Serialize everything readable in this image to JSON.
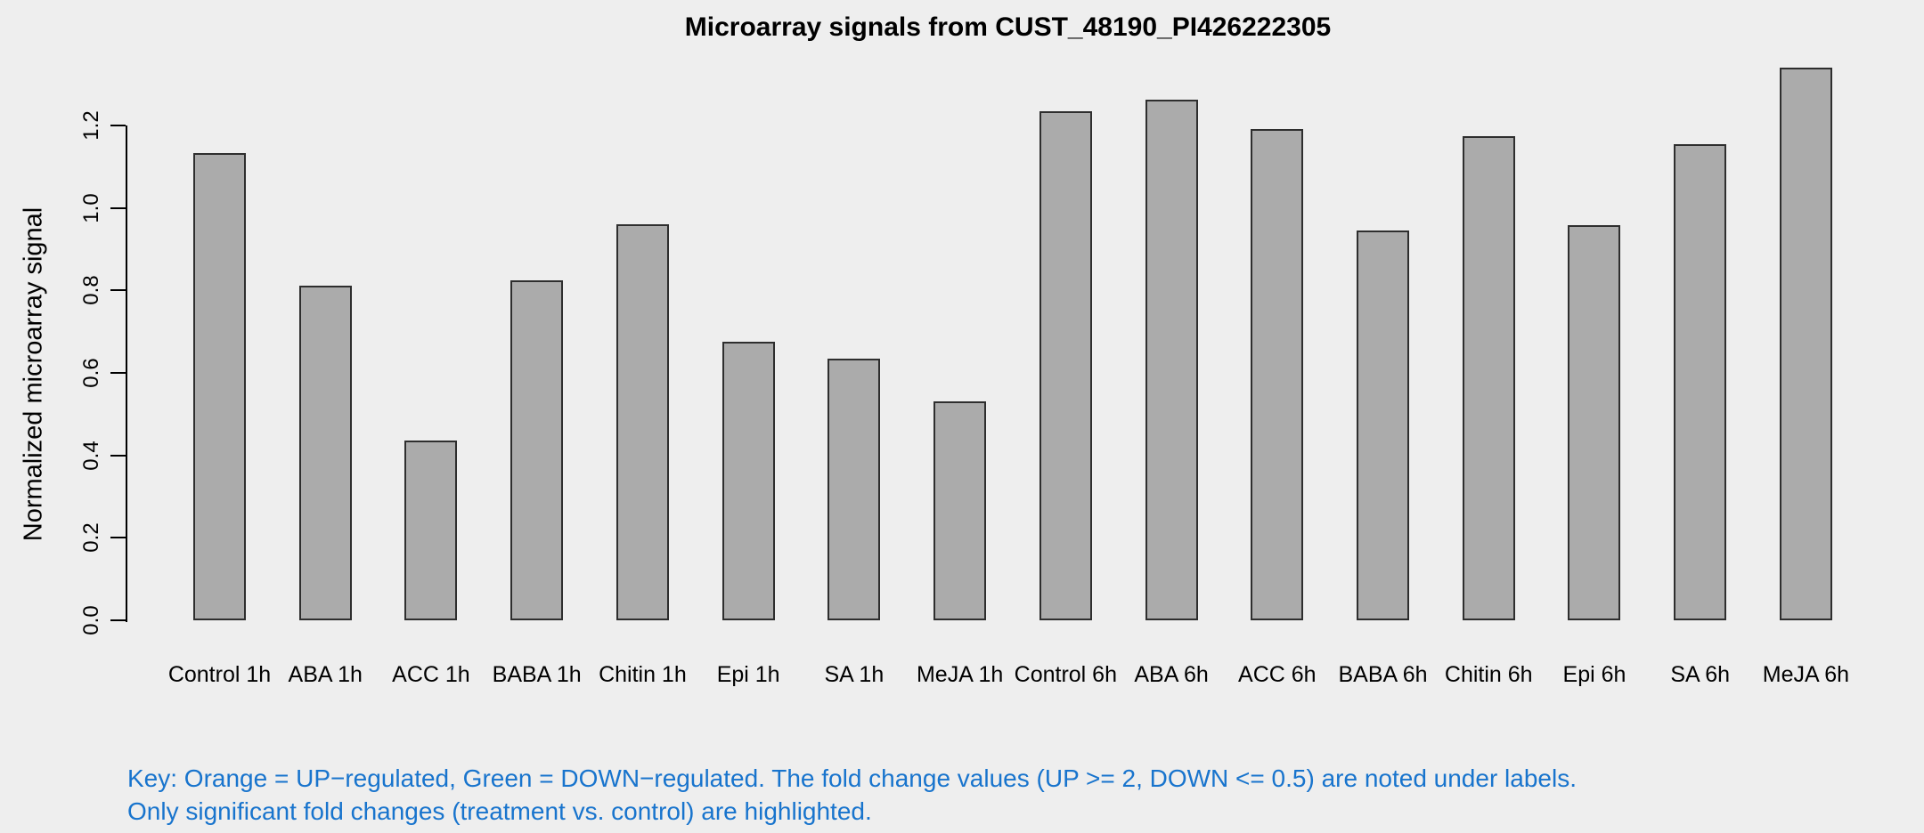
{
  "chart_data": {
    "type": "bar",
    "title": "Microarray signals from CUST_48190_PI426222305",
    "ylabel": "Normalized microarray signal",
    "xlabel": "",
    "categories": [
      "Control 1h",
      "ABA 1h",
      "ACC 1h",
      "BABA 1h",
      "Chitin 1h",
      "Epi 1h",
      "SA 1h",
      "MeJA 1h",
      "Control 6h",
      "ABA 6h",
      "ACC 6h",
      "BABA 6h",
      "Chitin 6h",
      "Epi 6h",
      "SA 6h",
      "MeJA 6h"
    ],
    "values": [
      1.133,
      0.812,
      0.435,
      0.825,
      0.96,
      0.675,
      0.635,
      0.53,
      1.234,
      1.262,
      1.19,
      0.946,
      1.174,
      0.959,
      1.155,
      1.339
    ],
    "ytick_labels": [
      "0.0",
      "0.2",
      "0.4",
      "0.6",
      "0.8",
      "1.0",
      "1.2"
    ],
    "ylim": [
      0,
      1.2
    ],
    "grid": "off",
    "legend_position": "none",
    "bar_fill": "#ABABAB",
    "bar_border": "#2e2e2e",
    "background": "#EEEEEE",
    "axis_color": "#000000"
  },
  "footnote": {
    "line1": "Key: Orange = UP−regulated, Green = DOWN−regulated. The fold change values (UP >= 2, DOWN <= 0.5) are noted under labels.",
    "line2": "Only significant fold changes (treatment vs. control) are highlighted.",
    "color": "#1874CD"
  }
}
